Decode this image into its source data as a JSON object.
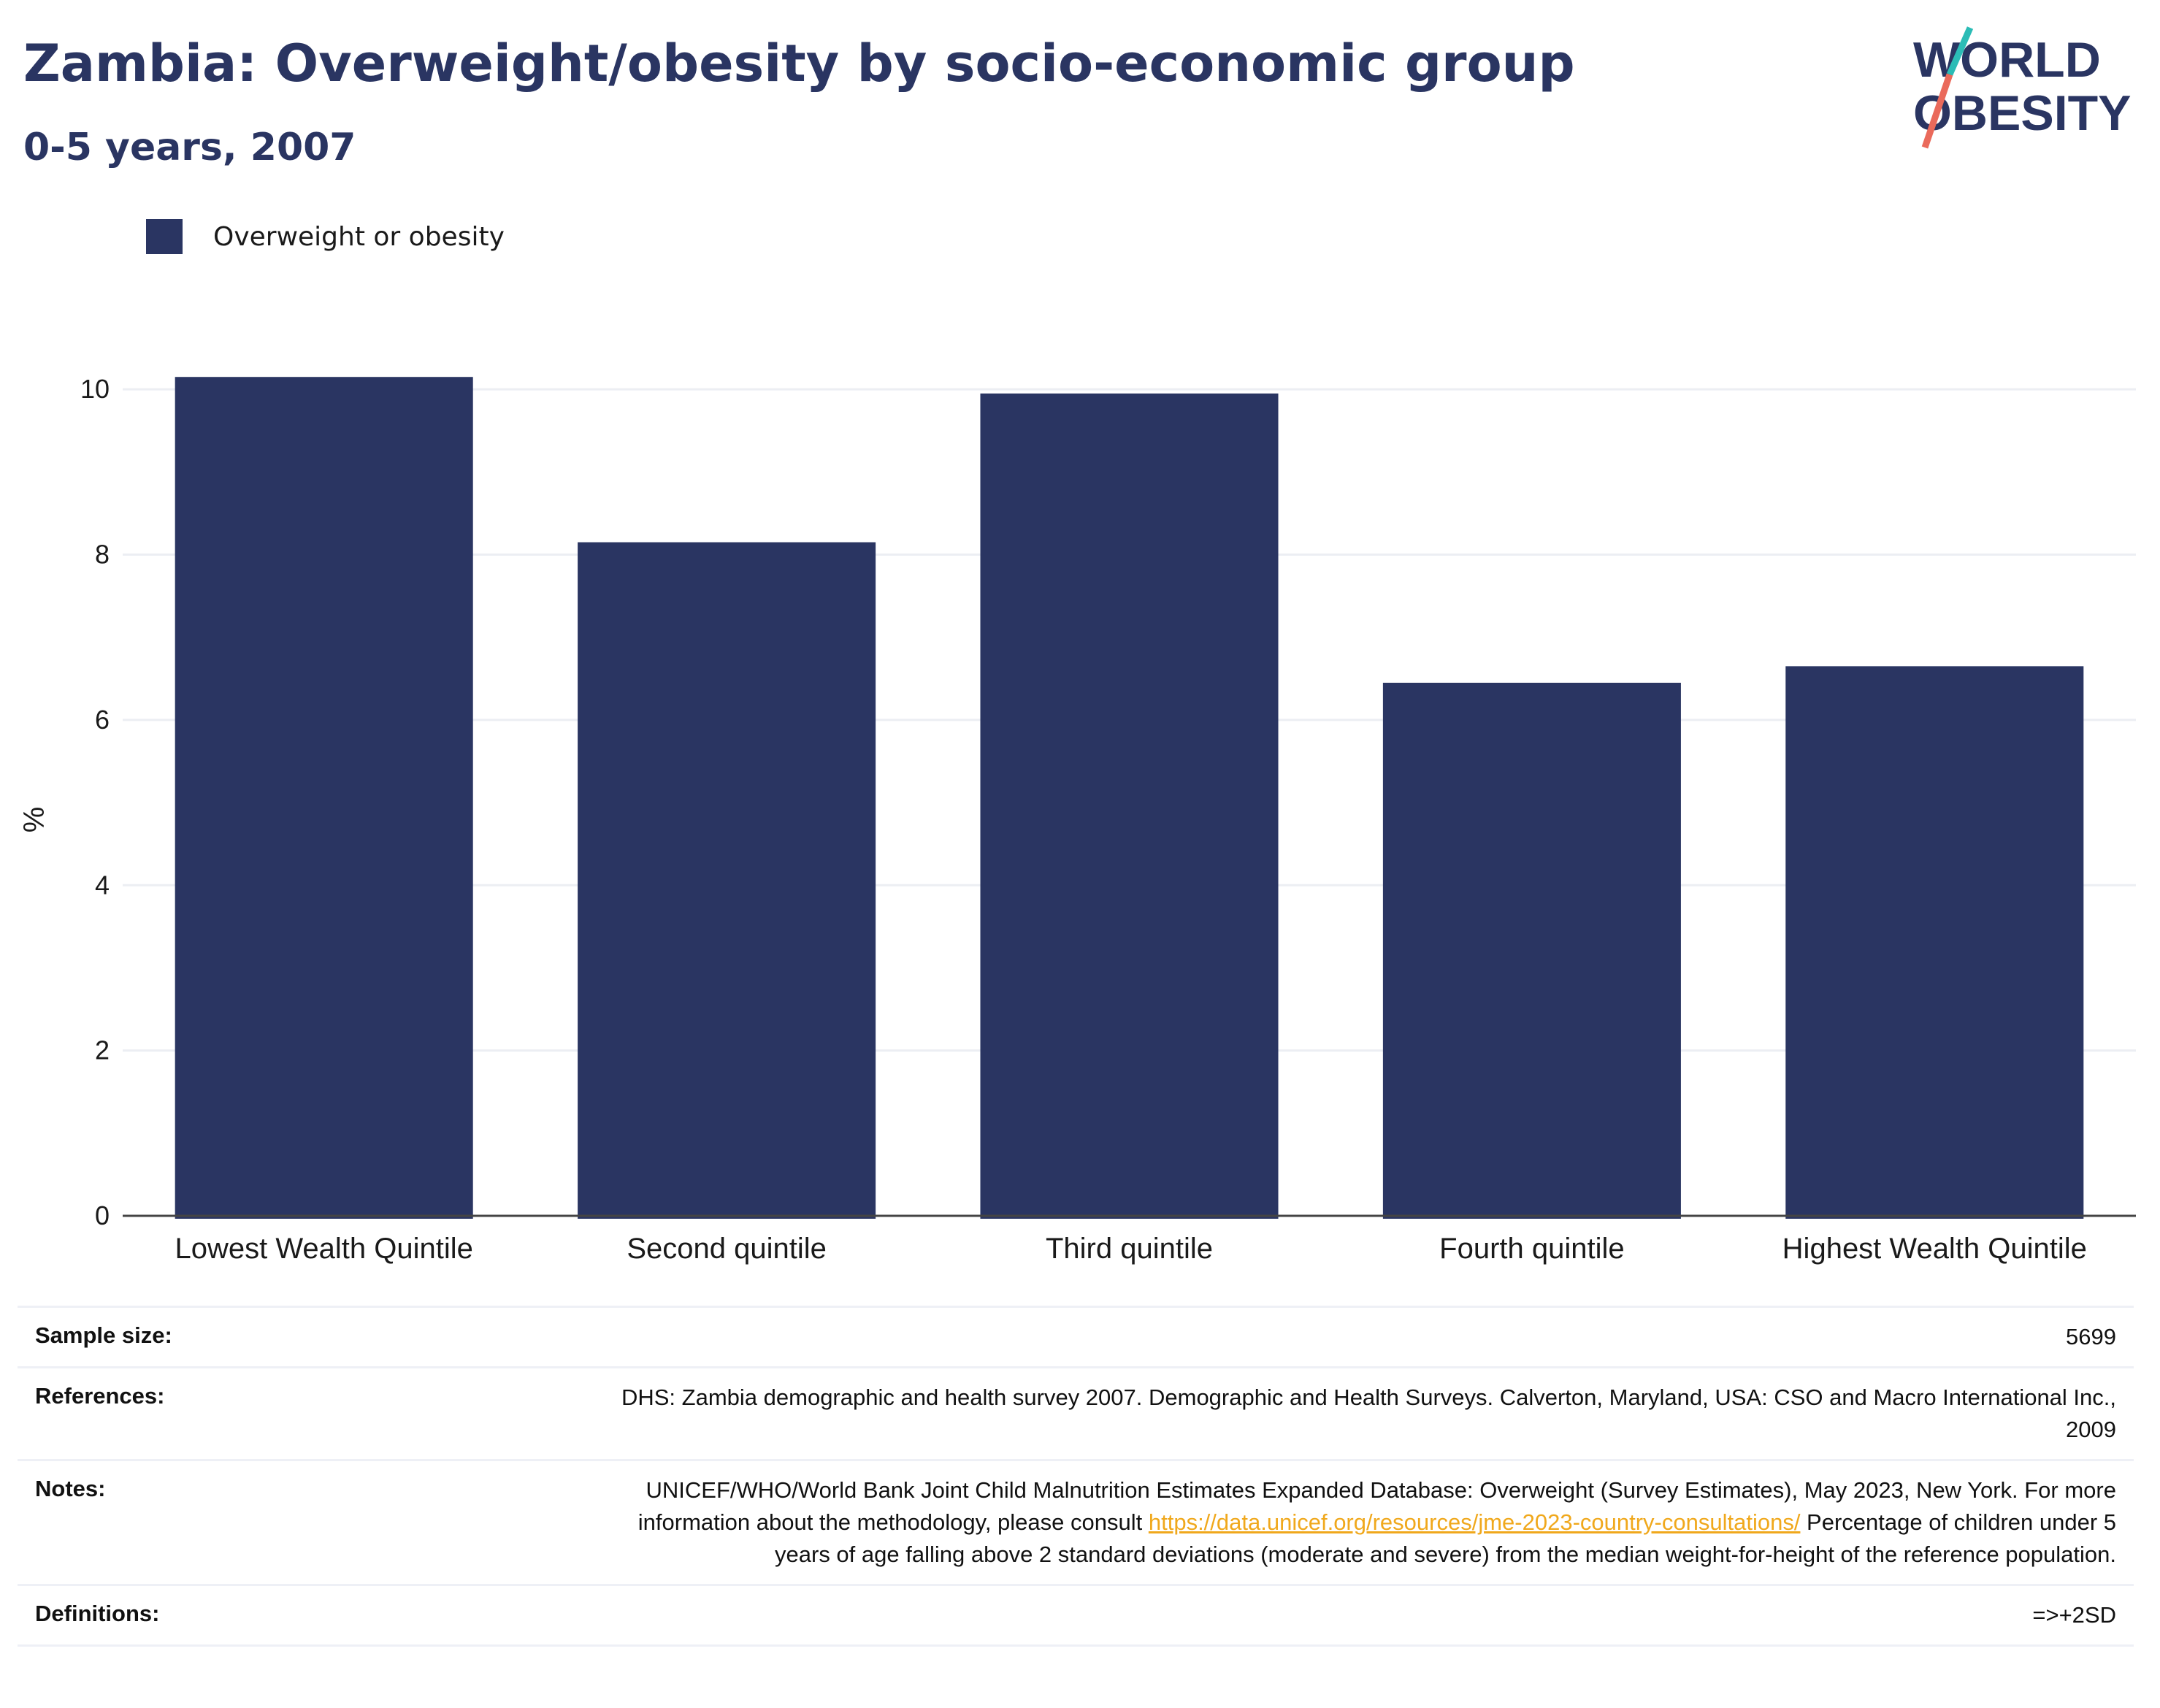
{
  "title": "Zambia: Overweight/obesity by socio-economic group",
  "subtitle": "0-5 years, 2007",
  "logo": {
    "line1": "WORLD",
    "line2": "OBESITY",
    "accent_teal": "#2bbcb6",
    "accent_coral": "#ea6a5b"
  },
  "colors": {
    "bar": "#2a3562",
    "grid": "#eceef3",
    "axis": "#444444"
  },
  "legend": {
    "label": "Overweight or obesity"
  },
  "chart_data": {
    "type": "bar",
    "categories": [
      "Lowest Wealth Quintile",
      "Second quintile",
      "Third quintile",
      "Fourth quintile",
      "Highest Wealth Quintile"
    ],
    "series": [
      {
        "name": "Overweight or obesity",
        "values": [
          10.15,
          8.15,
          9.95,
          6.45,
          6.65
        ]
      }
    ],
    "ylabel": "%",
    "ylim": [
      0,
      11
    ],
    "yticks": [
      0,
      2,
      4,
      6,
      8,
      10
    ],
    "grid": true,
    "legend_position": "top-left"
  },
  "info": {
    "sample_size_label": "Sample size:",
    "sample_size_value": "5699",
    "references_label": "References:",
    "references_value": "DHS: Zambia demographic and health survey 2007. Demographic and Health Surveys. Calverton, Maryland, USA: CSO and Macro International Inc., 2009",
    "notes_label": "Notes:",
    "notes_text1": "UNICEF/WHO/World Bank Joint Child Malnutrition Estimates Expanded Database: Overweight (Survey Estimates), May 2023, New York. For more information about the methodology, please consult ",
    "notes_link": "https://data.unicef.org/resources/jme-2023-country-consultations/",
    "notes_text2": " Percentage of children under 5 years of age falling above 2 standard deviations (moderate and severe) from the median weight-for-height of the reference population.",
    "definitions_label": "Definitions:",
    "definitions_value": "=>+2SD"
  }
}
